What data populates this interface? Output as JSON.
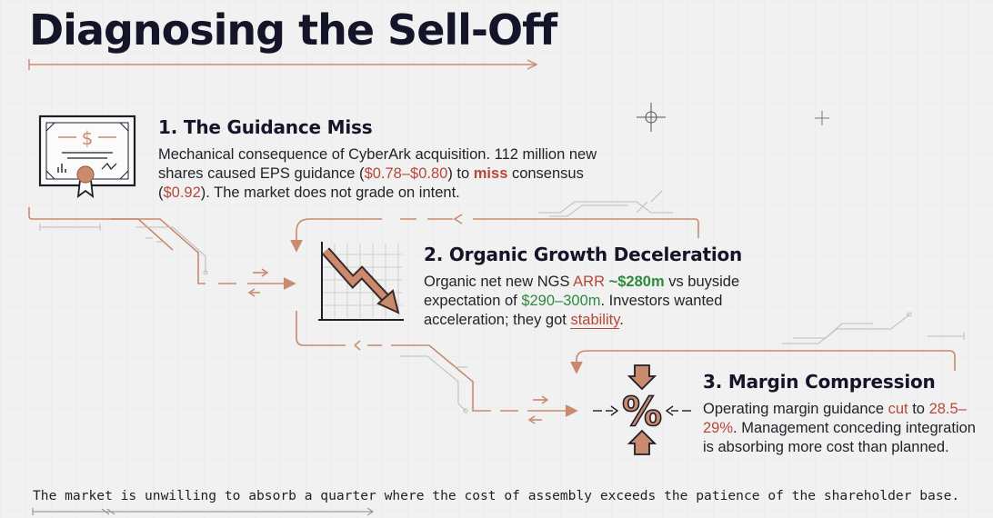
{
  "title": "Diagnosing the Sell-Off",
  "sections": [
    {
      "heading": "1. The Guidance Miss",
      "icon": "certificate-icon",
      "body": {
        "t1": "Mechanical consequence of CyberArk acquisition. 112 million new shares caused EPS guidance (",
        "eps": "$0.78–$0.80",
        "t2": ") to ",
        "miss": "miss",
        "t3": " consensus (",
        "consensus": "$0.92",
        "t4": "). The market does not grade on intent."
      }
    },
    {
      "heading": "2. Organic Growth Deceleration",
      "icon": "declining-chart-icon",
      "body": {
        "t1": "Organic net new NGS ",
        "arr": "ARR",
        "t2": " ",
        "arr_value": "~$280m",
        "t3": " vs buyside expectation of ",
        "expectation": "$290–300m",
        "t4": ". Investors wanted acceleration; they got ",
        "stability": "stability",
        "t5": "."
      }
    },
    {
      "heading": "3. Margin Compression",
      "icon": "percent-compression-icon",
      "body": {
        "t1": "Operating margin guidance ",
        "cut": "cut",
        "t2": " to ",
        "range": "28.5–29%",
        "t3": ". Management conceding integration is absorbing more cost than planned."
      }
    }
  ],
  "footer": "The market is unwilling to absorb a quarter where the cost of assembly exceeds the patience of the shareholder base.",
  "colors": {
    "accent": "#c98a6e",
    "red": "#b8473a",
    "green": "#2d8a3e",
    "ink": "#15152a"
  }
}
